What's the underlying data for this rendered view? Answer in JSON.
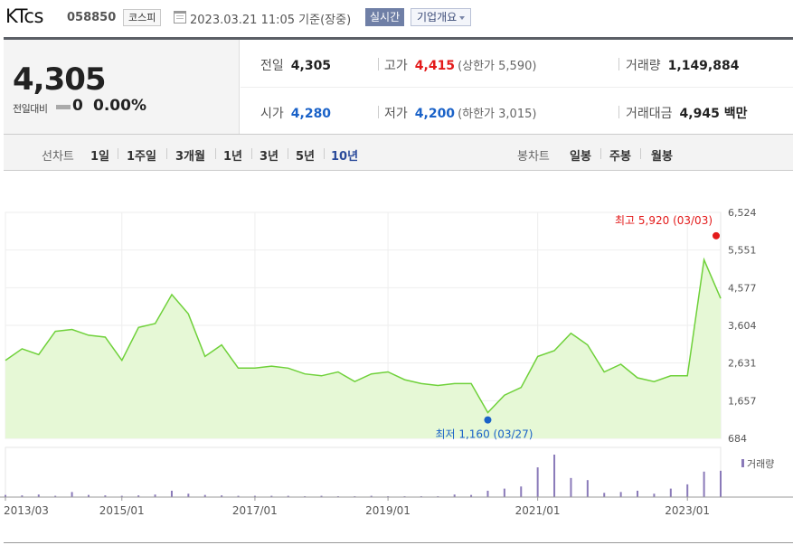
{
  "header": {
    "name": "KTcs",
    "code": "058850",
    "market": "코스피",
    "datetime": "2023.03.21 11:05",
    "basis": "기준(장중)",
    "realtime_label": "실시간",
    "corp_info_label": "기업개요"
  },
  "quote": {
    "price": "4,305",
    "change_label": "전일대비",
    "change": "0",
    "change_pct": "0.00%",
    "prev_close_label": "전일",
    "prev_close": "4,305",
    "high_label": "고가",
    "high": "4,415",
    "upper_limit": "(상한가 5,590)",
    "volume_label": "거래량",
    "volume": "1,149,884",
    "open_label": "시가",
    "open": "4,280",
    "low_label": "저가",
    "low": "4,200",
    "lower_limit": "(하한가 3,015)",
    "amount_label": "거래대금",
    "amount": "4,945 백만"
  },
  "periods": {
    "line_title": "선차트",
    "line_items": [
      "1일",
      "1주일",
      "3개월",
      "1년",
      "3년",
      "5년",
      "10년"
    ],
    "active": "10년",
    "candle_title": "봉차트",
    "candle_items": [
      "일봉",
      "주봉",
      "월봉"
    ]
  },
  "colors": {
    "line": "#6fd13a",
    "fill": "#e6f8d6",
    "up": "#e31a1a",
    "down": "#1a62c8",
    "volume": "#8a7ab9"
  },
  "chart_data": {
    "type": "area",
    "title": "",
    "xlabel": "",
    "ylabel": "",
    "x_tick_labels": [
      "2013/03",
      "2015/01",
      "2017/01",
      "2019/01",
      "2021/01",
      "2023/01"
    ],
    "y_ticks": [
      684,
      1657,
      2631,
      3604,
      4577,
      5551,
      6524
    ],
    "ylim": [
      684,
      6524
    ],
    "grid": true,
    "max_annotation": "최고 5,920 (03/03)",
    "min_annotation": "최저 1,160 (03/27)",
    "volume_legend": "거래량",
    "x": [
      "2013/03",
      "2013/06",
      "2013/09",
      "2013/12",
      "2014/03",
      "2014/06",
      "2014/09",
      "2014/12",
      "2015/03",
      "2015/06",
      "2015/09",
      "2015/12",
      "2016/03",
      "2016/06",
      "2016/09",
      "2016/12",
      "2017/03",
      "2017/06",
      "2017/09",
      "2017/12",
      "2018/03",
      "2018/06",
      "2018/09",
      "2018/12",
      "2019/03",
      "2019/06",
      "2019/09",
      "2019/12",
      "2020/01",
      "2020/03",
      "2020/06",
      "2020/09",
      "2020/12",
      "2021/03",
      "2021/06",
      "2021/09",
      "2021/12",
      "2022/03",
      "2022/06",
      "2022/09",
      "2022/12",
      "2023/01",
      "2023/02",
      "2023/03"
    ],
    "values": [
      2700,
      3000,
      2850,
      3450,
      3500,
      3350,
      3300,
      2700,
      3550,
      3650,
      4400,
      3900,
      2800,
      3100,
      2500,
      2500,
      2550,
      2500,
      2350,
      2300,
      2400,
      2150,
      2350,
      2400,
      2200,
      2100,
      2050,
      2100,
      2100,
      1350,
      1800,
      2000,
      2800,
      2950,
      3400,
      3100,
      2400,
      2600,
      2250,
      2150,
      2300,
      2300,
      5300,
      4300
    ],
    "volume": [
      0.05,
      0.04,
      0.06,
      0.03,
      0.12,
      0.05,
      0.04,
      0.03,
      0.04,
      0.06,
      0.15,
      0.08,
      0.05,
      0.04,
      0.03,
      0.03,
      0.03,
      0.03,
      0.02,
      0.03,
      0.02,
      0.02,
      0.03,
      0.02,
      0.02,
      0.02,
      0.02,
      0.06,
      0.05,
      0.15,
      0.2,
      0.25,
      0.7,
      1.0,
      0.45,
      0.4,
      0.1,
      0.12,
      0.15,
      0.08,
      0.2,
      0.3,
      0.6,
      0.62
    ]
  }
}
